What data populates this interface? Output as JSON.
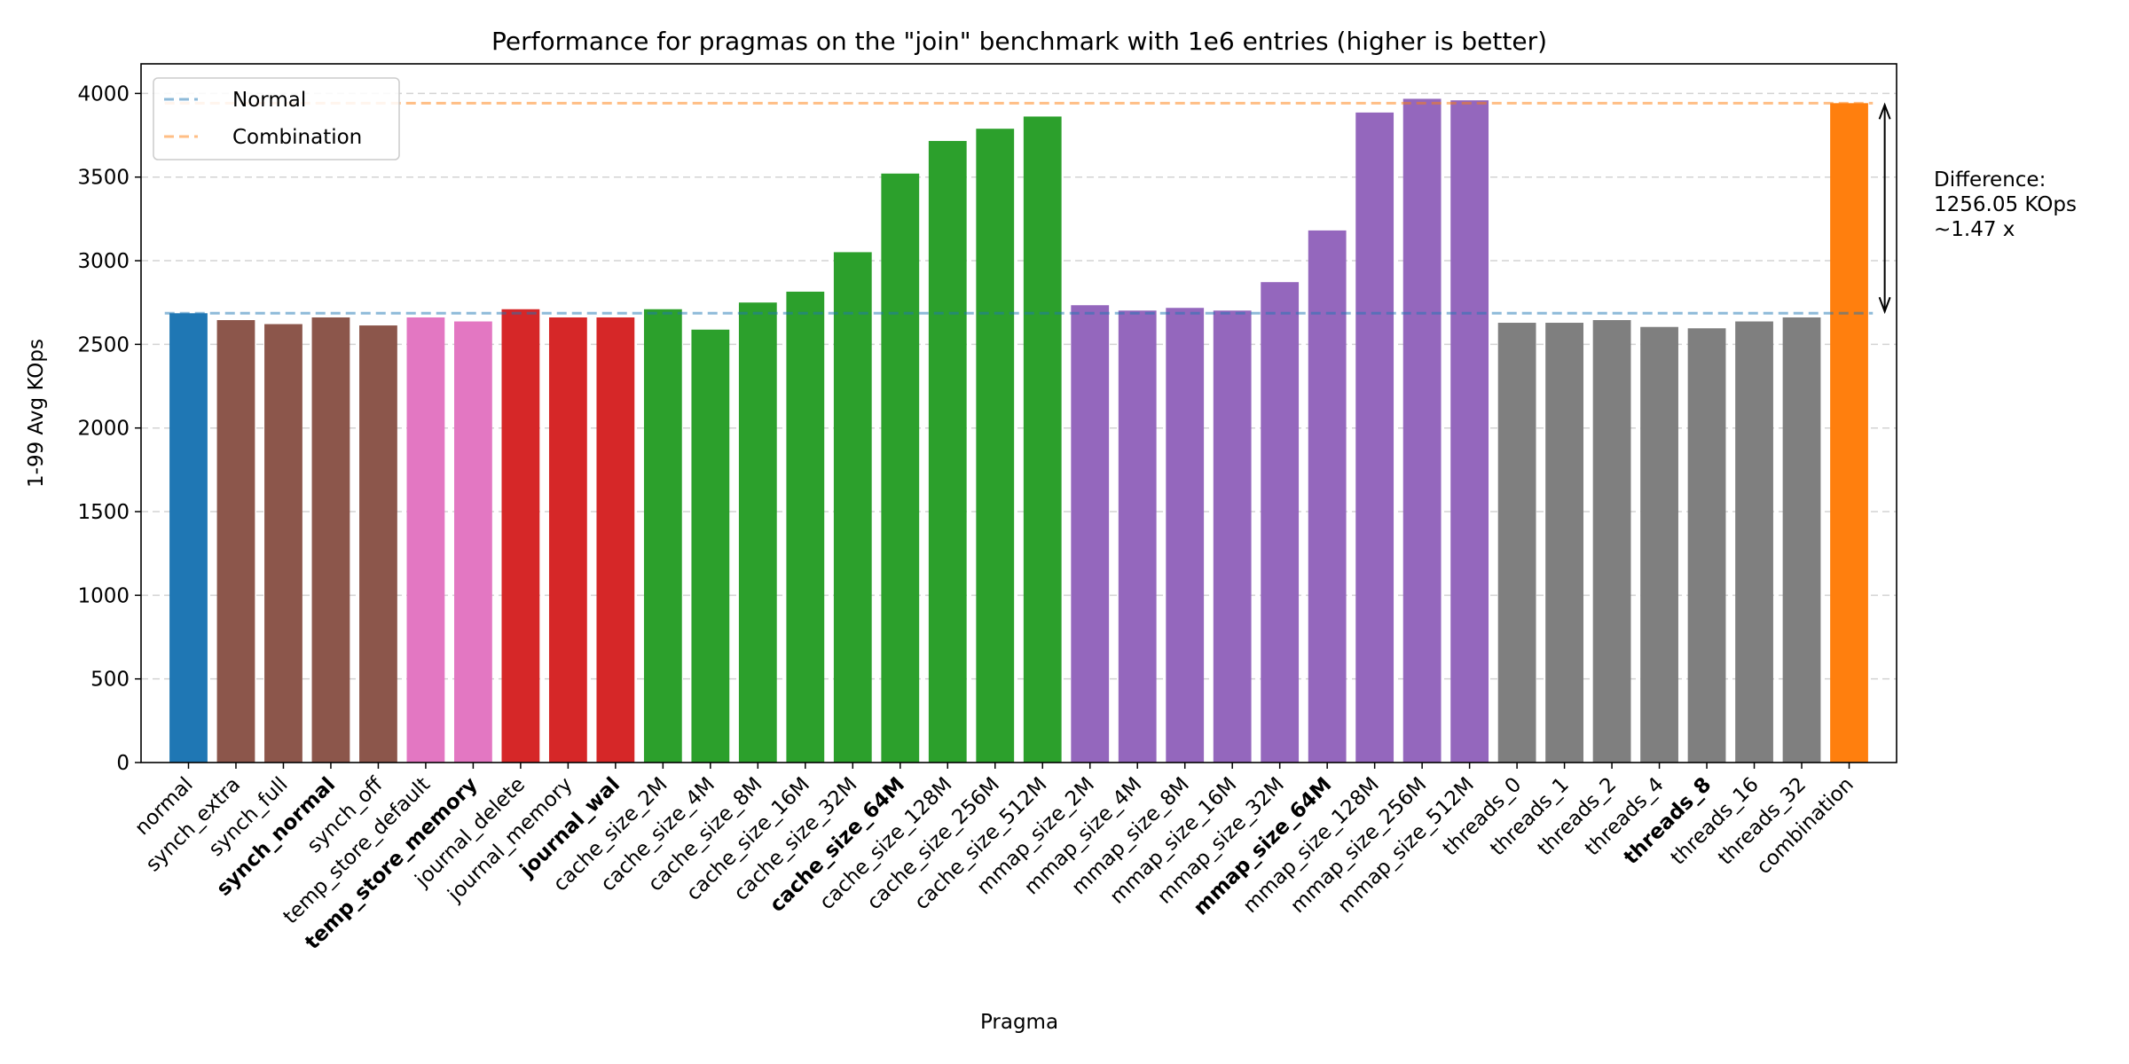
{
  "chart_data": {
    "type": "bar",
    "title": "Performance for pragmas on the \"join\" benchmark with 1e6 entries (higher is better)",
    "xlabel": "Pragma",
    "ylabel": "1-99 Avg KOps",
    "ylim": [
      0,
      4177
    ],
    "xlim": [
      -1.0,
      36.0
    ],
    "yticks": [
      0,
      500,
      1000,
      1500,
      2000,
      2500,
      3000,
      3500,
      4000
    ],
    "grid": "y-dashed",
    "legend_position": "top-left",
    "colors": {
      "blue": "#1f77b4",
      "brown": "#8c564b",
      "pink": "#e377c2",
      "red": "#d62728",
      "green": "#2ca02c",
      "purple": "#9467bd",
      "gray": "#7f7f7f",
      "orange": "#ff7f0e"
    },
    "categories": [
      "normal",
      "synch_extra",
      "synch_full",
      "synch_normal",
      "synch_off",
      "temp_store_default",
      "temp_store_memory",
      "journal_delete",
      "journal_memory",
      "journal_wal",
      "cache_size_2M",
      "cache_size_4M",
      "cache_size_8M",
      "cache_size_16M",
      "cache_size_32M",
      "cache_size_64M",
      "cache_size_128M",
      "cache_size_256M",
      "cache_size_512M",
      "mmap_size_2M",
      "mmap_size_4M",
      "mmap_size_8M",
      "mmap_size_16M",
      "mmap_size_32M",
      "mmap_size_64M",
      "mmap_size_128M",
      "mmap_size_256M",
      "mmap_size_512M",
      "threads_0",
      "threads_1",
      "threads_2",
      "threads_4",
      "threads_8",
      "threads_16",
      "threads_32",
      "combination"
    ],
    "values": [
      2686,
      2645,
      2621,
      2661,
      2613,
      2661,
      2637,
      2710,
      2661,
      2661,
      2710,
      2588,
      2750,
      2815,
      3051,
      3521,
      3716,
      3789,
      3862,
      2734,
      2702,
      2718,
      2702,
      2872,
      3181,
      3886,
      3968,
      3959,
      2629,
      2629,
      2645,
      2604,
      2596,
      2637,
      2661,
      3942
    ],
    "bar_colors": [
      "blue",
      "brown",
      "brown",
      "brown",
      "brown",
      "pink",
      "pink",
      "red",
      "red",
      "red",
      "green",
      "green",
      "green",
      "green",
      "green",
      "green",
      "green",
      "green",
      "green",
      "purple",
      "purple",
      "purple",
      "purple",
      "purple",
      "purple",
      "purple",
      "purple",
      "purple",
      "gray",
      "gray",
      "gray",
      "gray",
      "gray",
      "gray",
      "gray",
      "orange"
    ],
    "bold_labels": [
      "synch_normal",
      "temp_store_memory",
      "journal_wal",
      "cache_size_64M",
      "mmap_size_64M",
      "threads_8"
    ],
    "reference_lines": [
      {
        "name": "Normal",
        "value": 2686,
        "color": "#1f77b4"
      },
      {
        "name": "Combination",
        "value": 3942,
        "color": "#ff7f0e"
      }
    ],
    "annotation": {
      "lines": [
        "Difference:",
        "1256.05 KOps",
        "~1.47 x"
      ],
      "arrow_from": 2686,
      "arrow_to": 3942,
      "arrow_x": 35.75
    }
  }
}
